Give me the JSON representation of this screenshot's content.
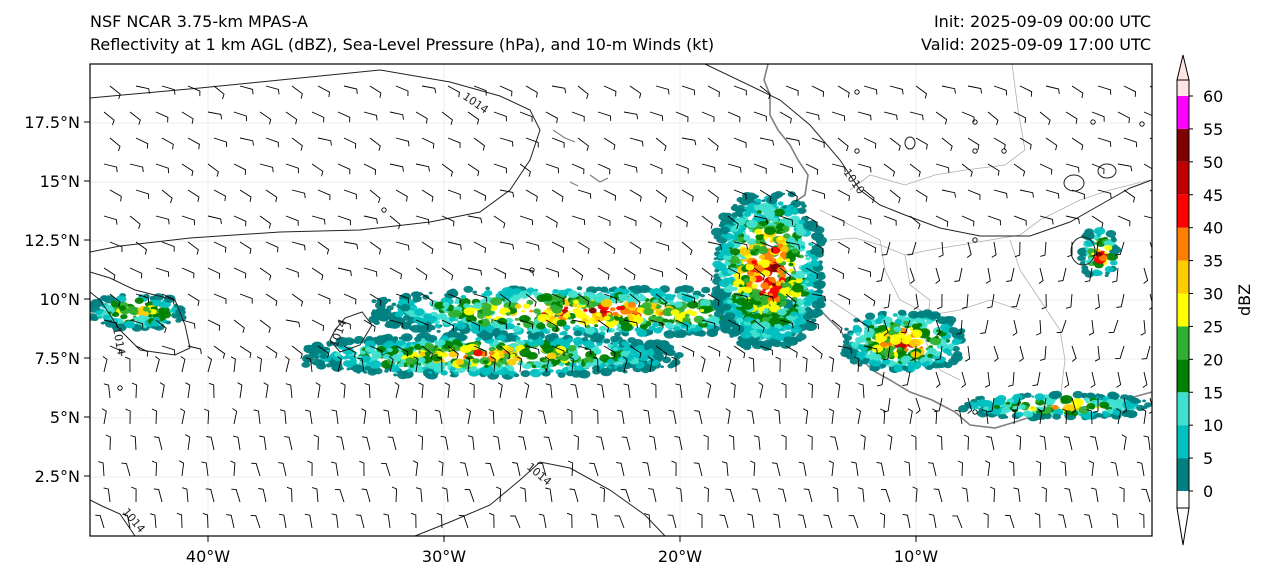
{
  "header": {
    "model": "NSF NCAR 3.75-km MPAS-A",
    "fields": "Reflectivity at 1 km AGL (dBZ), Sea-Level Pressure (hPa), and 10-m Winds (kt)",
    "init": "Init: 2025-09-09 00:00 UTC",
    "valid": "Valid: 2025-09-09 17:00 UTC"
  },
  "map": {
    "lat_labels": [
      "17.5°N",
      "15°N",
      "12.5°N",
      "10°N",
      "7.5°N",
      "5°N",
      "2.5°N"
    ],
    "lon_labels": [
      "40°W",
      "30°W",
      "20°W",
      "10°W"
    ],
    "isobar_labels": [
      "1014",
      "1010",
      "1014",
      "1014",
      "1014",
      "1014"
    ],
    "colors": {
      "coastline": "#808080",
      "isobar": "#222222",
      "border": "#b0b0b0"
    }
  },
  "colorbar": {
    "label": "dBZ",
    "ticks": [
      "0",
      "5",
      "10",
      "15",
      "20",
      "25",
      "30",
      "35",
      "40",
      "45",
      "50",
      "55",
      "60"
    ],
    "colors": [
      "#008080",
      "#00c0c0",
      "#40e0d0",
      "#008000",
      "#30b030",
      "#ffff00",
      "#ffcc00",
      "#ff8000",
      "#ff0000",
      "#c00000",
      "#800000",
      "#ff00ff",
      "#ffe4e1"
    ]
  },
  "chart_data": {
    "type": "heatmap",
    "xlim": [
      -45,
      0
    ],
    "ylim": [
      0,
      20
    ],
    "zlim": [
      0,
      60
    ],
    "x_ticks": [
      -40,
      -30,
      -20,
      -10
    ],
    "y_ticks": [
      2.5,
      5,
      7.5,
      10,
      12.5,
      15,
      17.5
    ],
    "colorbar_ticks": [
      0,
      5,
      10,
      15,
      20,
      25,
      30,
      35,
      40,
      45,
      50,
      55,
      60
    ],
    "isobars_hPa": [
      1010,
      1014
    ],
    "precip_bands": [
      {
        "lon": [
          -45,
          -41
        ],
        "lat": [
          8.8,
          10.2
        ],
        "max_dbz": 35
      },
      {
        "lon": [
          -33,
          -15
        ],
        "lat": [
          8.5,
          10.5
        ],
        "max_dbz": 45
      },
      {
        "lon": [
          -36,
          -20
        ],
        "lat": [
          6.8,
          8.5
        ],
        "max_dbz": 40
      },
      {
        "lon": [
          -18.5,
          -14
        ],
        "lat": [
          8.0,
          14.5
        ],
        "max_dbz": 50
      },
      {
        "lon": [
          -13,
          -8
        ],
        "lat": [
          7.0,
          9.5
        ],
        "max_dbz": 45
      },
      {
        "lon": [
          -3,
          -1.5
        ],
        "lat": [
          11,
          13
        ],
        "max_dbz": 45
      },
      {
        "lon": [
          -8,
          0
        ],
        "lat": [
          5.0,
          6.0
        ],
        "max_dbz": 35
      }
    ]
  }
}
